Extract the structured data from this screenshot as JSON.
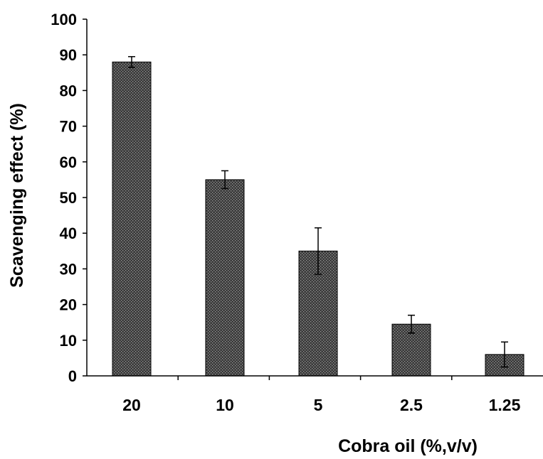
{
  "chart_data": {
    "type": "bar",
    "title": "",
    "xlabel": "Cobra oil (%,v/v)",
    "ylabel": "Scavenging effect (%)",
    "categories": [
      "20",
      "10",
      "5",
      "2.5",
      "1.25"
    ],
    "values": [
      88,
      55,
      35,
      14.5,
      6
    ],
    "error_bars": [
      1.5,
      2.5,
      6.5,
      2.5,
      3.5
    ],
    "ylim": [
      0,
      100
    ],
    "yticks": [
      0,
      10,
      20,
      30,
      40,
      50,
      60,
      70,
      80,
      90,
      100
    ],
    "grid": false,
    "legend": "none",
    "colors": {
      "bar_fill": "#3a3a3a",
      "bar_dots": "#9a9a9a",
      "axis": "#000000"
    }
  }
}
